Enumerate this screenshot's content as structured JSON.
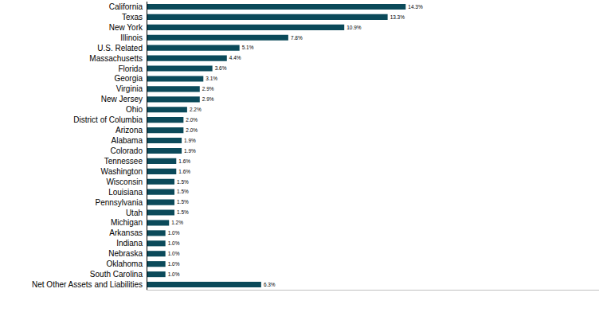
{
  "chart_data": {
    "type": "bar",
    "orientation": "horizontal",
    "color": "#0b4a5a",
    "categories": [
      "California",
      "Texas",
      "New York",
      "Illinois",
      "U.S. Related",
      "Massachusetts",
      "Florida",
      "Georgia",
      "Virginia",
      "New Jersey",
      "Ohio",
      "District of Columbia",
      "Arizona",
      "Alabama",
      "Colorado",
      "Tennessee",
      "Washington",
      "Wisconsin",
      "Louisiana",
      "Pennsylvania",
      "Utah",
      "Michigan",
      "Arkansas",
      "Indiana",
      "Nebraska",
      "Oklahoma",
      "South Carolina",
      "Net Other Assets and Liabilities"
    ],
    "values": [
      14.3,
      13.3,
      10.9,
      7.8,
      5.1,
      4.4,
      3.6,
      3.1,
      2.9,
      2.9,
      2.2,
      2.0,
      2.0,
      1.9,
      1.9,
      1.6,
      1.6,
      1.5,
      1.5,
      1.5,
      1.5,
      1.2,
      1.0,
      1.0,
      1.0,
      1.0,
      1.0,
      6.3
    ],
    "value_labels": [
      "14.3%",
      "13.3%",
      "10.9%",
      "7.8%",
      "5.1%",
      "4.4%",
      "3.6%",
      "3.1%",
      "2.9%",
      "2.9%",
      "2.2%",
      "2.0%",
      "2.0%",
      "1.9%",
      "1.9%",
      "1.6%",
      "1.6%",
      "1.5%",
      "1.5%",
      "1.5%",
      "1.5%",
      "1.2%",
      "1.0%",
      "1.0%",
      "1.0%",
      "1.0%",
      "1.0%",
      "6.3%"
    ],
    "xlim": [
      0,
      25
    ],
    "xticks": [],
    "data_labels": true,
    "tick_labels": "y",
    "grid": false
  }
}
